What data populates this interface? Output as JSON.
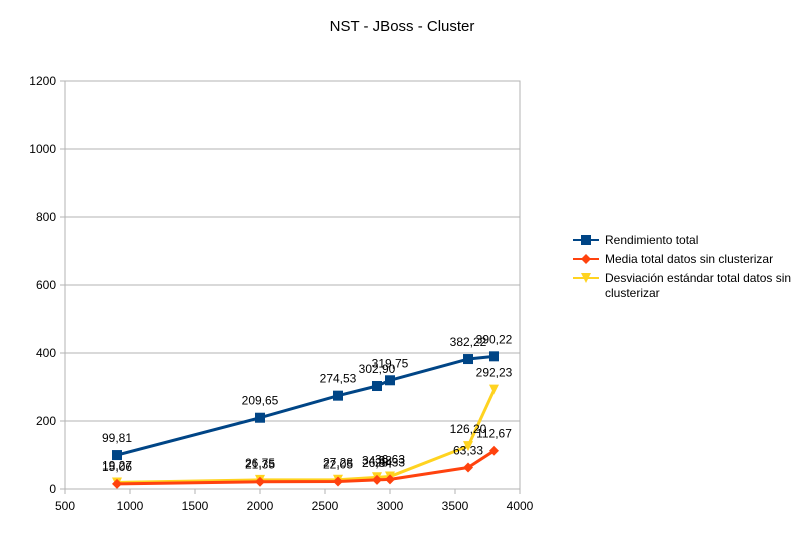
{
  "chart_data": {
    "type": "line",
    "title": "NST - JBoss - Cluster",
    "xlabel": "",
    "ylabel": "",
    "xlim": [
      500,
      4000
    ],
    "ylim": [
      0,
      1200
    ],
    "x_ticks": [
      "500",
      "1000",
      "1500",
      "2000",
      "2500",
      "3000",
      "3500",
      "4000"
    ],
    "y_ticks": [
      "0",
      "200",
      "400",
      "600",
      "800",
      "1000",
      "1200"
    ],
    "grid": "horizontal",
    "legend_position": "right",
    "series": [
      {
        "name": "Rendimiento total",
        "color": "#004586",
        "marker": "square",
        "points": [
          {
            "x": 900,
            "y": 99.81,
            "label": "99,81"
          },
          {
            "x": 2000,
            "y": 209.65,
            "label": "209,65"
          },
          {
            "x": 2600,
            "y": 274.53,
            "label": "274,53"
          },
          {
            "x": 2900,
            "y": 302.9,
            "label": "302,90"
          },
          {
            "x": 3000,
            "y": 319.75,
            "label": "319,75"
          },
          {
            "x": 3600,
            "y": 382.22,
            "label": "382,22"
          },
          {
            "x": 3800,
            "y": 390.22,
            "label": "390,22"
          }
        ]
      },
      {
        "name": "Media total datos sin clusterizar",
        "color": "#ff420e",
        "marker": "diamond",
        "points": [
          {
            "x": 900,
            "y": 15.06,
            "label": "15,06"
          },
          {
            "x": 2000,
            "y": 21.35,
            "label": "21,35"
          },
          {
            "x": 2600,
            "y": 22.05,
            "label": "22,05"
          },
          {
            "x": 2900,
            "y": 26.84,
            "label": "26,84"
          },
          {
            "x": 3000,
            "y": 28.33,
            "label": "28,33"
          },
          {
            "x": 3600,
            "y": 63.33,
            "label": "63,33"
          },
          {
            "x": 3800,
            "y": 112.67,
            "label": "112,67"
          }
        ]
      },
      {
        "name": "Desviación estándar total datos sin clusterizar",
        "color": "#ffd320",
        "marker": "triangle-down",
        "points": [
          {
            "x": 900,
            "y": 19.27,
            "label": "19,27"
          },
          {
            "x": 2000,
            "y": 26.75,
            "label": "26,75"
          },
          {
            "x": 2600,
            "y": 27.28,
            "label": "27,28"
          },
          {
            "x": 2900,
            "y": 34.38,
            "label": "34,38"
          },
          {
            "x": 3000,
            "y": 36.63,
            "label": "36,63"
          },
          {
            "x": 3600,
            "y": 126.2,
            "label": "126,20"
          },
          {
            "x": 3800,
            "y": 292.23,
            "label": "292,23"
          }
        ]
      }
    ]
  }
}
